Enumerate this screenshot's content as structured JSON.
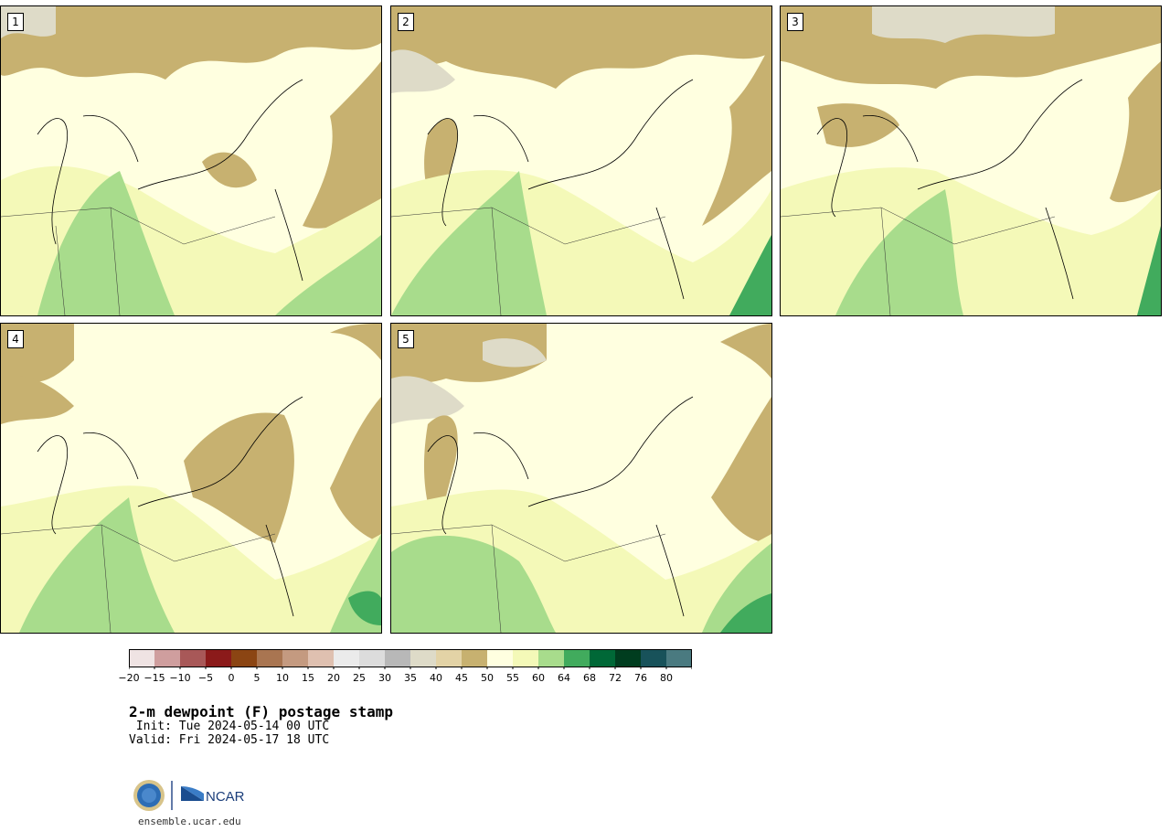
{
  "panels": [
    {
      "label": "1"
    },
    {
      "label": "2"
    },
    {
      "label": "3"
    },
    {
      "label": "4"
    },
    {
      "label": "5"
    }
  ],
  "colorbar": {
    "colors": [
      "#efe3e3",
      "#cf9e9e",
      "#a85858",
      "#8b1a1a",
      "#8b4513",
      "#a97551",
      "#c49a80",
      "#dfc0b0",
      "#ebebeb",
      "#dcdcdc",
      "#b8b8b8",
      "#dedbc8",
      "#e3d3a6",
      "#c7b170",
      "#ffffe0",
      "#f4f9b8",
      "#a8dc8c",
      "#41ab5d",
      "#006837",
      "#003d1f",
      "#18525a",
      "#4a7a80"
    ],
    "ticks": [
      "−20",
      "−15",
      "−10",
      "−5",
      "0",
      "5",
      "10",
      "15",
      "20",
      "25",
      "30",
      "35",
      "40",
      "45",
      "50",
      "55",
      "60",
      "64",
      "68",
      "72",
      "76",
      "80"
    ]
  },
  "title": "2-m dewpoint (F) postage stamp",
  "init": " Init: Tue 2024-05-14 00 UTC",
  "valid": "Valid: Fri 2024-05-17 18 UTC",
  "logos": {
    "left_logo": "NSF",
    "right_logo": "NCAR"
  },
  "website": "ensemble.ucar.edu"
}
